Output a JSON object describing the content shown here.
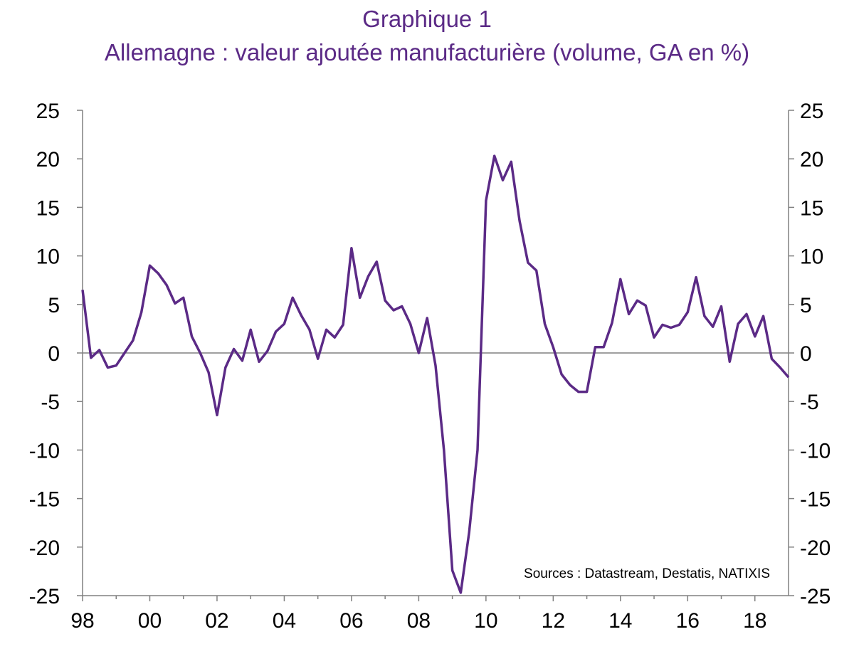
{
  "chart_data": {
    "type": "line",
    "title": "Graphique 1",
    "subtitle": "Allemagne : valeur ajoutée manufacturière (volume, GA en %)",
    "source": "Sources : Datastream, Destatis, NATIXIS",
    "xlabel": "",
    "ylabel": "",
    "x_tick_labels": [
      "98",
      "00",
      "02",
      "04",
      "06",
      "08",
      "10",
      "12",
      "14",
      "16",
      "18"
    ],
    "y_ticks": [
      25,
      20,
      15,
      10,
      5,
      0,
      -5,
      -10,
      -15,
      -20,
      -25
    ],
    "y_tick_labels": [
      "25",
      "20",
      "15",
      "10",
      "5",
      "0",
      "-5",
      "-10",
      "-15",
      "-20",
      "-25"
    ],
    "ylim": [
      -25,
      25
    ],
    "xlim": [
      1998.0,
      2019.0
    ],
    "grid": false,
    "zero_line": true,
    "dual_axis": true,
    "line_color": "#5b2a86",
    "series": [
      {
        "name": "",
        "x": [
          1998.0,
          1998.25,
          1998.5,
          1998.75,
          1999.0,
          1999.25,
          1999.5,
          1999.75,
          2000.0,
          2000.25,
          2000.5,
          2000.75,
          2001.0,
          2001.25,
          2001.5,
          2001.75,
          2002.0,
          2002.25,
          2002.5,
          2002.75,
          2003.0,
          2003.25,
          2003.5,
          2003.75,
          2004.0,
          2004.25,
          2004.5,
          2004.75,
          2005.0,
          2005.25,
          2005.5,
          2005.75,
          2006.0,
          2006.25,
          2006.5,
          2006.75,
          2007.0,
          2007.25,
          2007.5,
          2007.75,
          2008.0,
          2008.25,
          2008.5,
          2008.75,
          2009.0,
          2009.25,
          2009.5,
          2009.75,
          2010.0,
          2010.25,
          2010.5,
          2010.75,
          2011.0,
          2011.25,
          2011.5,
          2011.75,
          2012.0,
          2012.25,
          2012.5,
          2012.75,
          2013.0,
          2013.25,
          2013.5,
          2013.75,
          2014.0,
          2014.25,
          2014.5,
          2014.75,
          2015.0,
          2015.25,
          2015.5,
          2015.75,
          2016.0,
          2016.25,
          2016.5,
          2016.75,
          2017.0,
          2017.25,
          2017.5,
          2017.75,
          2018.0,
          2018.25,
          2018.5,
          2018.75,
          2019.0
        ],
        "values": [
          6.5,
          -0.5,
          0.3,
          -1.5,
          -1.3,
          0.0,
          1.3,
          4.2,
          9.0,
          8.2,
          7.0,
          5.1,
          5.7,
          1.7,
          0.0,
          -2.0,
          -6.4,
          -1.5,
          0.4,
          -0.8,
          2.4,
          -0.9,
          0.2,
          2.2,
          3.0,
          5.7,
          3.9,
          2.4,
          -0.6,
          2.4,
          1.6,
          2.9,
          10.8,
          5.7,
          7.9,
          9.4,
          5.4,
          4.4,
          4.8,
          3.0,
          0.0,
          3.6,
          -1.3,
          -10.0,
          -22.4,
          -24.7,
          -18.5,
          -10.0,
          15.7,
          20.3,
          17.8,
          19.7,
          13.6,
          9.3,
          8.5,
          3.0,
          0.6,
          -2.2,
          -3.3,
          -4.0,
          -4.0,
          0.6,
          0.6,
          3.1,
          7.6,
          4.0,
          5.4,
          4.9,
          1.6,
          2.9,
          2.6,
          2.9,
          4.2,
          7.8,
          3.8,
          2.7,
          4.8,
          -0.9,
          3.0,
          4.0,
          1.7,
          3.8,
          -0.6,
          -1.5,
          -2.5
        ]
      }
    ]
  }
}
